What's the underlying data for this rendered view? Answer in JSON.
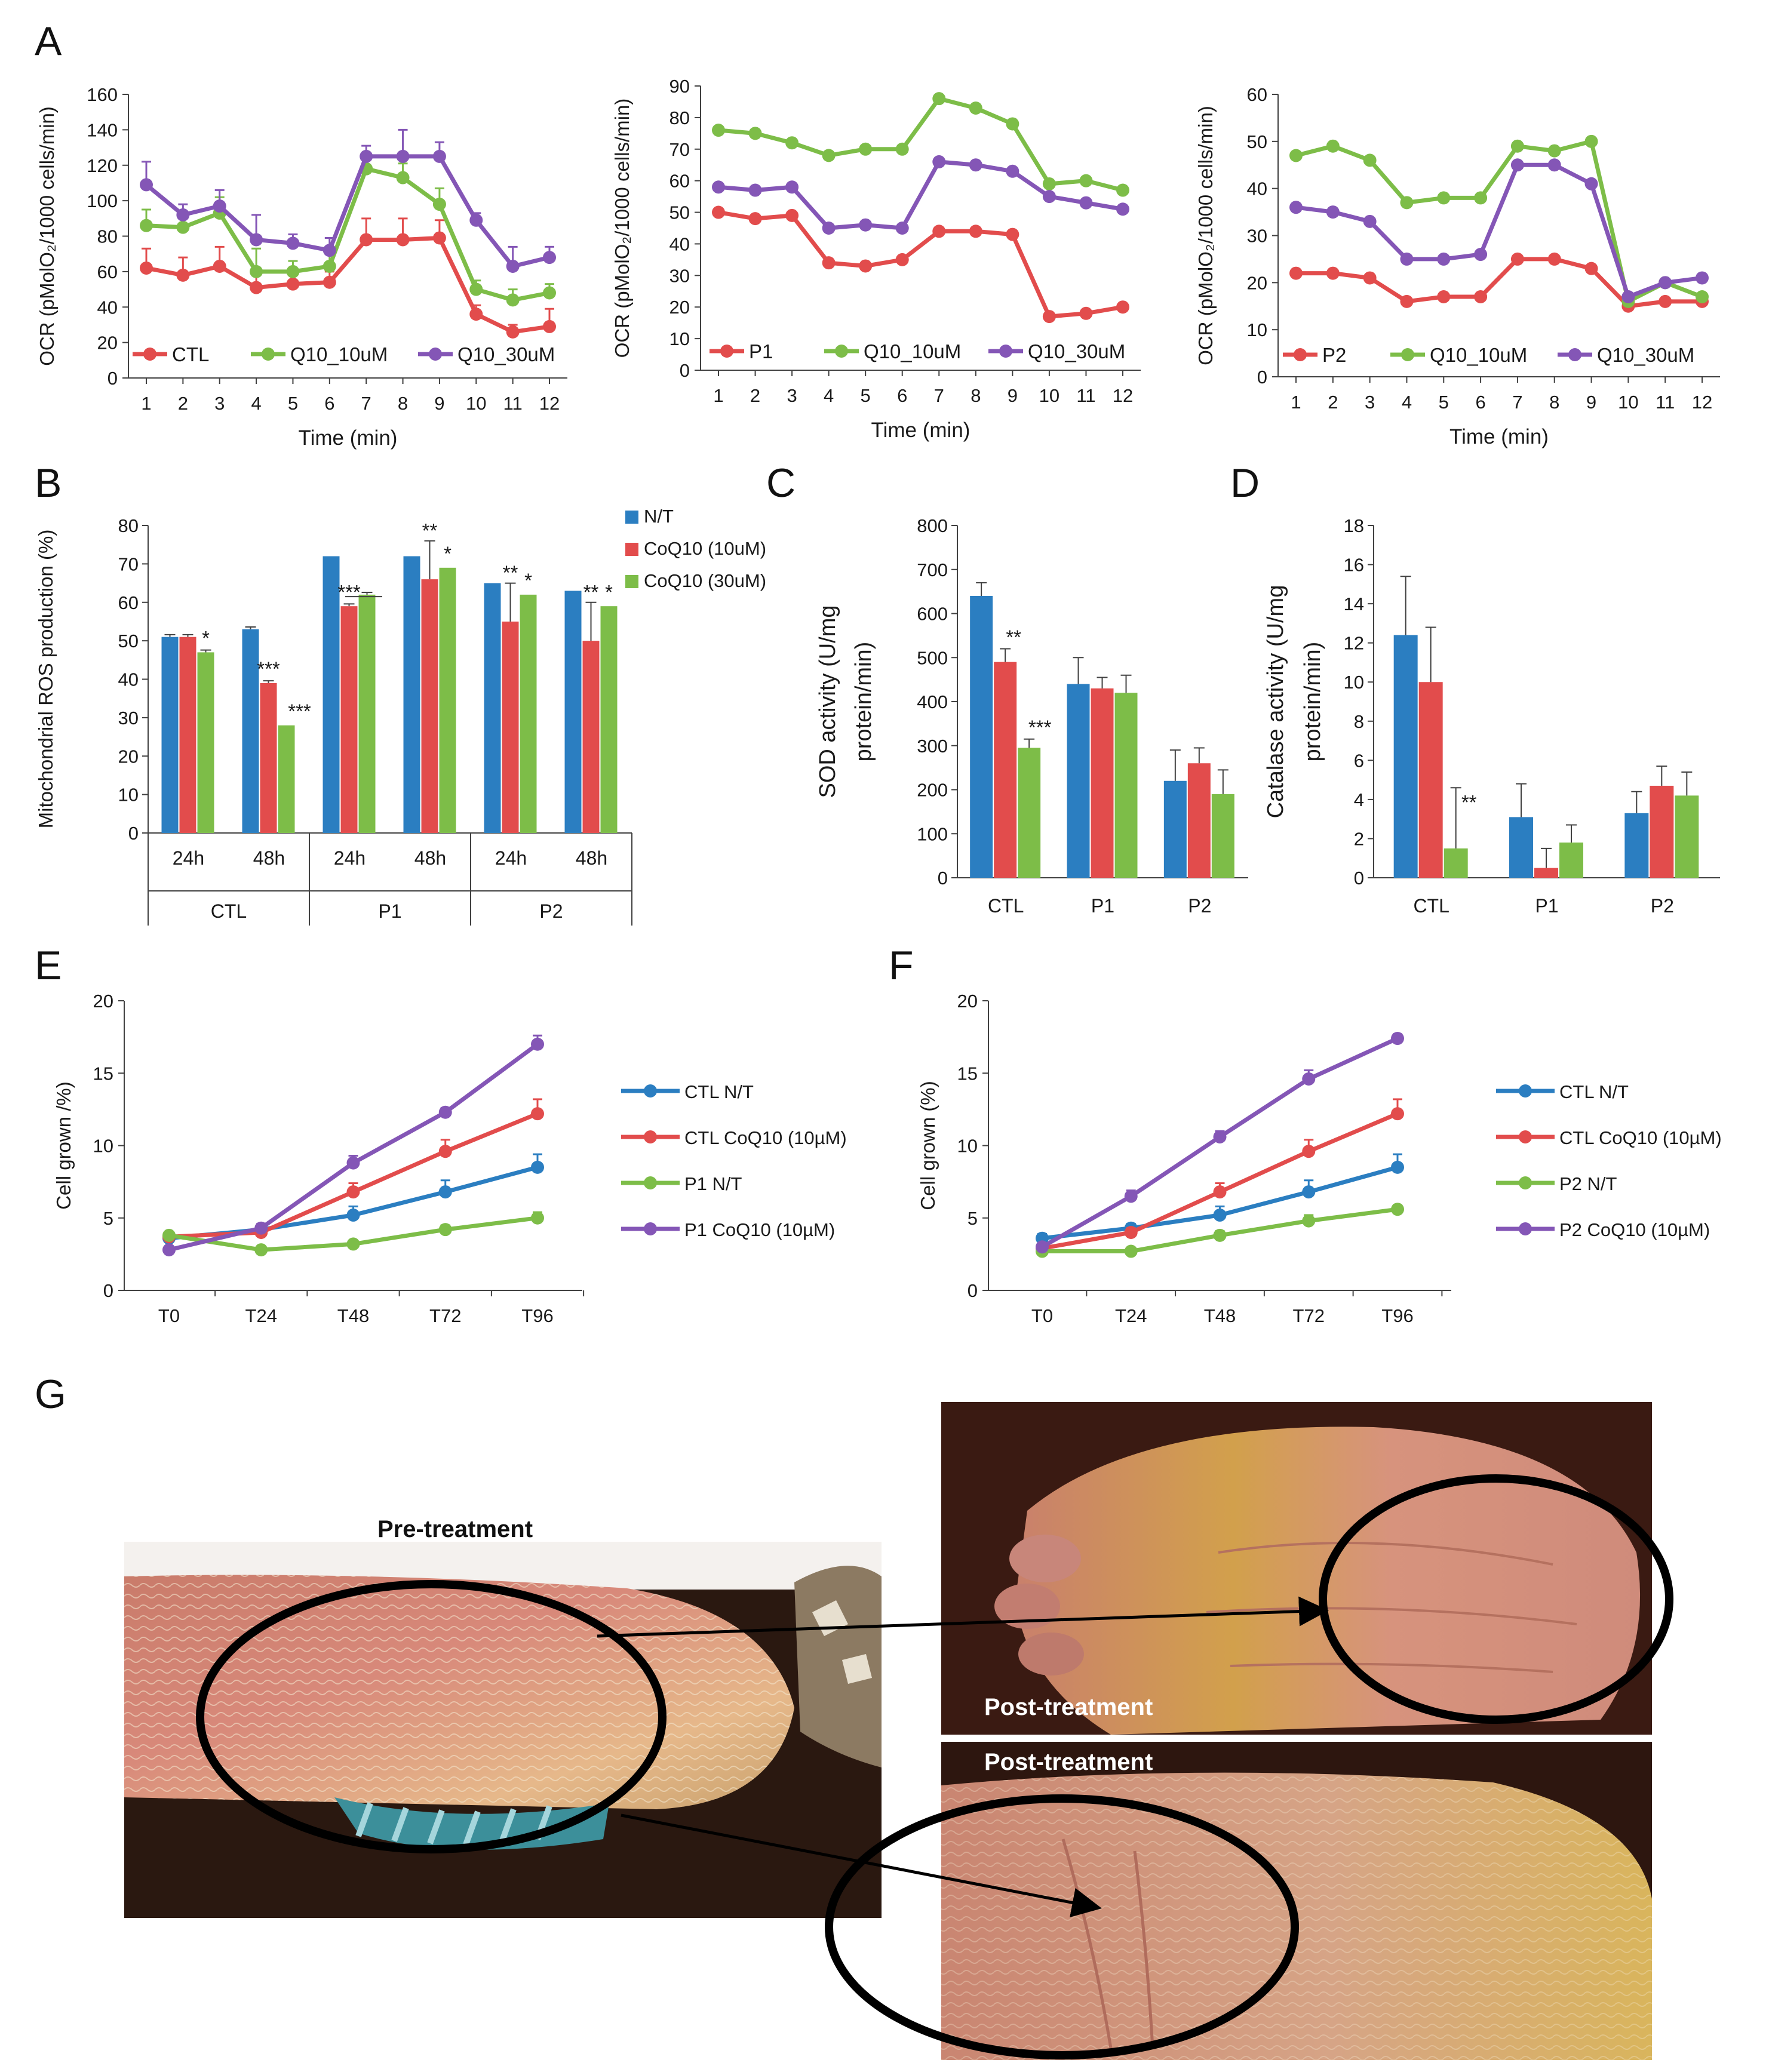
{
  "colors": {
    "blue": "#2b7ec1",
    "red": "#e24c4c",
    "green": "#7dbd48",
    "purple": "#8456b6",
    "axis": "#404040",
    "text": "#1a1a1a"
  },
  "panel_labels": {
    "a": "A",
    "b": "B",
    "c": "C",
    "d": "D",
    "e": "E",
    "f": "F",
    "g": "G"
  },
  "chart_data": [
    {
      "id": "A1",
      "type": "line",
      "x": [
        1,
        2,
        3,
        4,
        5,
        6,
        7,
        8,
        9,
        10,
        11,
        12
      ],
      "xlabel": "Time (min)",
      "ylabel": "OCR (pMolO₂/1000 cells/min)",
      "ylim": [
        0,
        160
      ],
      "yticks": [
        0,
        20,
        40,
        60,
        80,
        100,
        120,
        140,
        160
      ],
      "series": [
        {
          "name": "CTL",
          "color": "#e24c4c",
          "values": [
            62,
            58,
            63,
            51,
            53,
            54,
            78,
            78,
            79,
            36,
            26,
            29
          ],
          "err": [
            11,
            10,
            11,
            7,
            6,
            6,
            12,
            12,
            10,
            5,
            4,
            10
          ]
        },
        {
          "name": "Q10_10uM",
          "color": "#7dbd48",
          "values": [
            86,
            85,
            93,
            60,
            60,
            63,
            118,
            113,
            98,
            50,
            44,
            48
          ],
          "err": [
            9,
            9,
            9,
            13,
            6,
            8,
            6,
            8,
            9,
            5,
            6,
            5
          ]
        },
        {
          "name": "Q10_30uM",
          "color": "#8456b6",
          "values": [
            109,
            92,
            97,
            78,
            76,
            72,
            125,
            125,
            125,
            89,
            63,
            68
          ],
          "err": [
            13,
            6,
            9,
            14,
            5,
            7,
            6,
            15,
            8,
            4,
            11,
            6
          ]
        }
      ]
    },
    {
      "id": "A2",
      "type": "line",
      "x": [
        1,
        2,
        3,
        4,
        5,
        6,
        7,
        8,
        9,
        10,
        11,
        12
      ],
      "xlabel": "Time (min)",
      "ylabel": "OCR (pMolO₂/1000 cells/min)",
      "ylim": [
        0,
        90
      ],
      "yticks": [
        0,
        10,
        20,
        30,
        40,
        50,
        60,
        70,
        80,
        90
      ],
      "series": [
        {
          "name": "P1",
          "color": "#e24c4c",
          "values": [
            50,
            48,
            49,
            34,
            33,
            35,
            44,
            44,
            43,
            17,
            18,
            20
          ]
        },
        {
          "name": "Q10_10uM",
          "color": "#7dbd48",
          "values": [
            76,
            75,
            72,
            68,
            70,
            70,
            86,
            83,
            78,
            59,
            60,
            57
          ]
        },
        {
          "name": "Q10_30uM",
          "color": "#8456b6",
          "values": [
            58,
            57,
            58,
            45,
            46,
            45,
            66,
            65,
            63,
            55,
            53,
            51
          ]
        }
      ]
    },
    {
      "id": "A3",
      "type": "line",
      "x": [
        1,
        2,
        3,
        4,
        5,
        6,
        7,
        8,
        9,
        10,
        11,
        12
      ],
      "xlabel": "Time (min)",
      "ylabel": "OCR (pMolO₂/1000 cells/min)",
      "ylim": [
        0,
        60
      ],
      "yticks": [
        0,
        10,
        20,
        30,
        40,
        50,
        60
      ],
      "series": [
        {
          "name": "P2",
          "color": "#e24c4c",
          "values": [
            22,
            22,
            21,
            16,
            17,
            17,
            25,
            25,
            23,
            15,
            16,
            16
          ]
        },
        {
          "name": "Q10_10uM",
          "color": "#7dbd48",
          "values": [
            47,
            49,
            46,
            37,
            38,
            38,
            49,
            48,
            50,
            16,
            20,
            17
          ]
        },
        {
          "name": "Q10_30uM",
          "color": "#8456b6",
          "values": [
            36,
            35,
            33,
            25,
            25,
            26,
            45,
            45,
            41,
            17,
            20,
            21
          ]
        }
      ]
    },
    {
      "id": "B",
      "type": "bar",
      "categories": [
        "24h",
        "48h",
        "24h",
        "48h",
        "24h",
        "48h"
      ],
      "groups": [
        "CTL",
        "P1",
        "P2"
      ],
      "ylabel": "Mitochondrial ROS production (%)",
      "ylim": [
        0,
        80
      ],
      "yticks": [
        0,
        10,
        20,
        30,
        40,
        50,
        60,
        70,
        80
      ],
      "series": [
        {
          "name": "N/T",
          "color": "#2b7ec1",
          "values": [
            51,
            53,
            72,
            72,
            65,
            63
          ],
          "err": [
            0.6,
            0.6,
            0,
            0,
            0,
            0
          ]
        },
        {
          "name": "CoQ10 (10uM)",
          "color": "#e24c4c",
          "values": [
            51,
            39,
            59,
            66,
            55,
            50
          ],
          "err": [
            0.6,
            0.6,
            0.6,
            10,
            10,
            10
          ]
        },
        {
          "name": "CoQ10 (30uM)",
          "color": "#7dbd48",
          "values": [
            47,
            28,
            62,
            69,
            62,
            59
          ],
          "err": [
            0.6,
            0,
            0.6,
            0,
            0,
            0
          ]
        }
      ],
      "annotations": [
        "*",
        "***",
        "***",
        "***",
        "**",
        "*",
        "**",
        "*",
        "**",
        "*"
      ]
    },
    {
      "id": "C",
      "type": "bar",
      "categories": [
        "CTL",
        "P1",
        "P2"
      ],
      "ylabel": "SOD activity (U/mg protein/min)",
      "ylim": [
        0,
        800
      ],
      "yticks": [
        0,
        100,
        200,
        300,
        400,
        500,
        600,
        700,
        800
      ],
      "series": [
        {
          "name": "N/T",
          "color": "#2b7ec1",
          "values": [
            640,
            440,
            220
          ],
          "err": [
            30,
            60,
            70
          ]
        },
        {
          "name": "CoQ10 (10uM)",
          "color": "#e24c4c",
          "values": [
            490,
            430,
            260
          ],
          "err": [
            30,
            25,
            35
          ]
        },
        {
          "name": "CoQ10 (30uM)",
          "color": "#7dbd48",
          "values": [
            295,
            420,
            190
          ],
          "err": [
            20,
            40,
            55
          ]
        }
      ],
      "annotations": [
        "**",
        "***"
      ]
    },
    {
      "id": "D",
      "type": "bar",
      "categories": [
        "CTL",
        "P1",
        "P2"
      ],
      "ylabel": "Catalase activity (U/mg protein/min)",
      "ylim": [
        0,
        18
      ],
      "yticks": [
        0,
        2,
        4,
        6,
        8,
        10,
        12,
        14,
        16,
        18
      ],
      "series": [
        {
          "name": "N/T",
          "color": "#2b7ec1",
          "values": [
            12.4,
            3.1,
            3.3
          ],
          "err": [
            3.0,
            1.7,
            1.1
          ]
        },
        {
          "name": "CoQ10 (10uM)",
          "color": "#e24c4c",
          "values": [
            10,
            0.5,
            4.7
          ],
          "err": [
            2.8,
            1.0,
            1.0
          ]
        },
        {
          "name": "CoQ10 (30uM)",
          "color": "#7dbd48",
          "values": [
            1.5,
            1.8,
            4.2
          ],
          "err": [
            3.1,
            0.9,
            1.2
          ]
        }
      ],
      "annotations": [
        "**"
      ]
    },
    {
      "id": "E",
      "type": "line",
      "x": [
        "T0",
        "T24",
        "T48",
        "T72",
        "T96"
      ],
      "ylabel": "Cell grown /%)",
      "ylim": [
        0,
        20
      ],
      "yticks": [
        0,
        5,
        10,
        15,
        20
      ],
      "series": [
        {
          "name": "CTL N/T",
          "color": "#2b7ec1",
          "values": [
            3.6,
            4.2,
            5.2,
            6.8,
            8.5
          ],
          "err": [
            0.3,
            0.3,
            0.6,
            0.8,
            0.9
          ]
        },
        {
          "name": "CTL CoQ10 (10µM)",
          "color": "#e24c4c",
          "values": [
            3.7,
            4.0,
            6.8,
            9.6,
            12.2
          ],
          "err": [
            0.3,
            0.3,
            0.6,
            0.8,
            1.0
          ]
        },
        {
          "name": "P1 N/T",
          "color": "#7dbd48",
          "values": [
            3.8,
            2.8,
            3.2,
            4.2,
            5.0
          ],
          "err": [
            0.2,
            0.2,
            0.2,
            0.3,
            0.4
          ]
        },
        {
          "name": "P1 CoQ10 (10µM)",
          "color": "#8456b6",
          "values": [
            2.8,
            4.3,
            8.8,
            12.3,
            17.0
          ],
          "err": [
            0.2,
            0.3,
            0.5,
            0.3,
            0.6
          ]
        }
      ]
    },
    {
      "id": "F",
      "type": "line",
      "x": [
        "T0",
        "T24",
        "T48",
        "T72",
        "T96"
      ],
      "ylabel": "Cell grown (%)",
      "ylim": [
        0,
        20
      ],
      "yticks": [
        0,
        5,
        10,
        15,
        20
      ],
      "series": [
        {
          "name": "CTL N/T",
          "color": "#2b7ec1",
          "values": [
            3.6,
            4.3,
            5.2,
            6.8,
            8.5
          ],
          "err": [
            0.3,
            0.3,
            0.6,
            0.8,
            0.9
          ]
        },
        {
          "name": "CTL CoQ10 (10µM)",
          "color": "#e24c4c",
          "values": [
            2.9,
            4.0,
            6.8,
            9.6,
            12.2
          ],
          "err": [
            0.3,
            0.3,
            0.6,
            0.8,
            1.0
          ]
        },
        {
          "name": "P2 N/T",
          "color": "#7dbd48",
          "values": [
            2.7,
            2.7,
            3.8,
            4.8,
            5.6
          ],
          "err": [
            0.2,
            0.2,
            0.3,
            0.4,
            0.3
          ]
        },
        {
          "name": "P2 CoQ10 (10µM)",
          "color": "#8456b6",
          "values": [
            3.0,
            6.5,
            10.6,
            14.6,
            17.4
          ],
          "err": [
            0.2,
            0.4,
            0.4,
            0.6,
            0.3
          ]
        }
      ]
    }
  ],
  "photos": {
    "pre_caption": "Pre-treatment",
    "post_caption_top": "Post-treatment",
    "post_caption_bottom": "Post-treatment"
  }
}
